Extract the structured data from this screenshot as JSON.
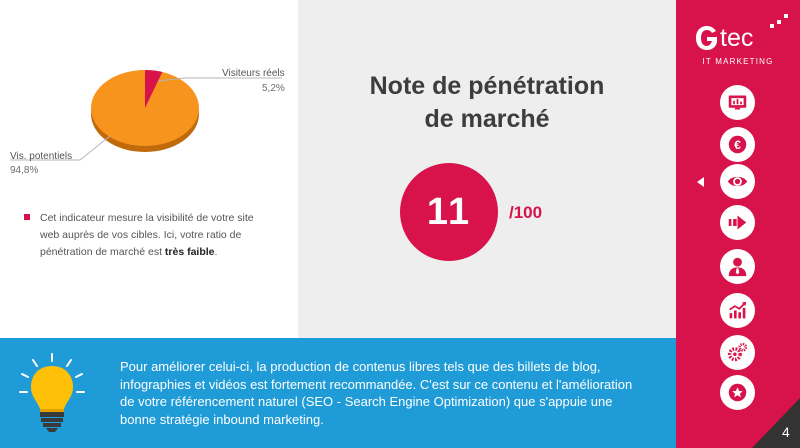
{
  "pie": {
    "segments": [
      {
        "label": "Visiteurs réels",
        "value_label": "5,2%",
        "value": 5.2,
        "color": "#d8124a"
      },
      {
        "label": "Vis. potentiels",
        "value_label": "94,8%",
        "value": 94.8,
        "color": "#f7941d"
      }
    ]
  },
  "note": {
    "text": "Cet indicateur mesure la visibilité de votre site web auprès de vos cibles. Ici, votre ratio de pénétration de marché est ",
    "emphasis": "très faible",
    "end": "."
  },
  "title": {
    "line1": "Note de pénétration",
    "line2": "de marché"
  },
  "score": {
    "value": "11",
    "max": "/100"
  },
  "tip": {
    "text": "Pour améliorer celui-ci, la production de contenus libres tels que des billets de blog, infographies et vidéos est fortement recommandée. C'est sur ce contenu et l'amélioration de votre référencement naturel (SEO - Search Engine Optimization) que s'appuie une bonne stratégie inbound marketing."
  },
  "logo": {
    "name": "tec",
    "subtitle": "IT MARKETING"
  },
  "nav": {
    "icons": [
      "dashboard-icon",
      "euro-icon",
      "eye-icon",
      "arrow-right-icon",
      "user-icon",
      "growth-chart-icon",
      "gears-icon",
      "star-icon"
    ],
    "active_index": 2
  },
  "page_number": "4",
  "colors": {
    "brand": "#d8124a",
    "accent_orange": "#f7941d",
    "info_blue": "#1f9bd7"
  }
}
